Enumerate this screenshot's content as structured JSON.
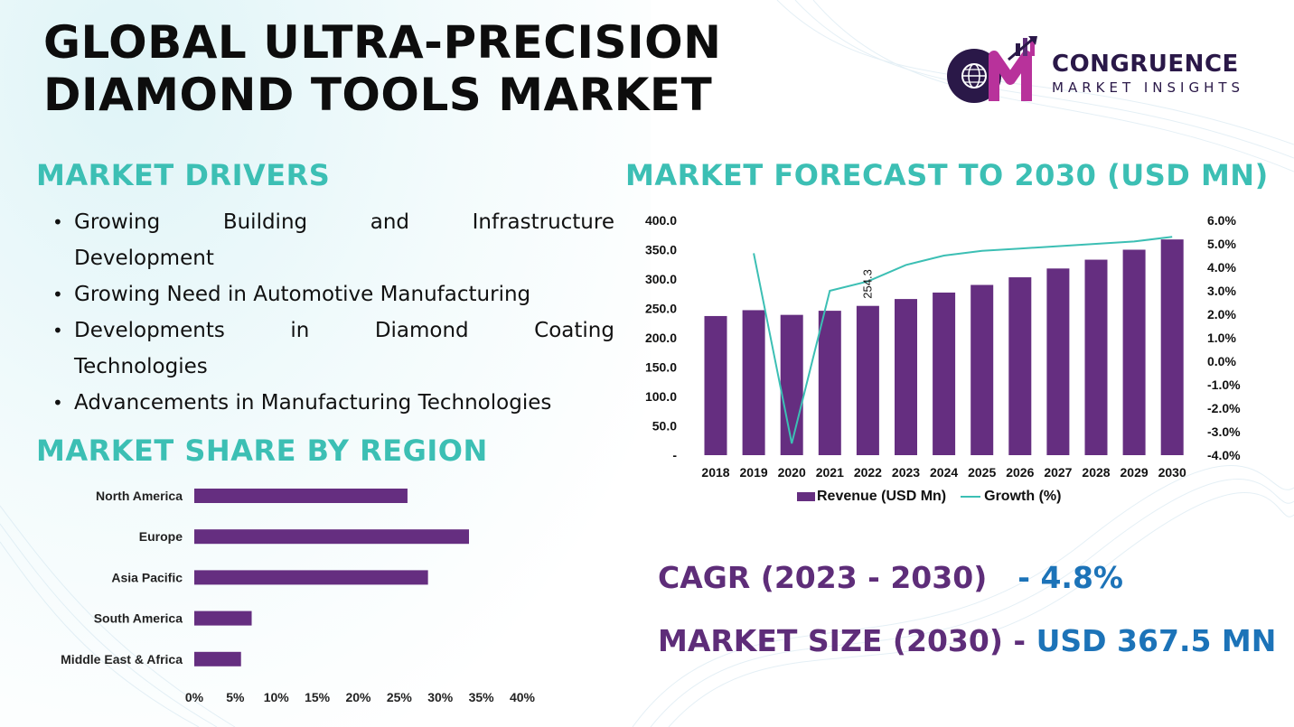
{
  "title": {
    "line1": "GLOBAL ULTRA-PRECISION",
    "line2": "DIAMOND TOOLS MARKET"
  },
  "logo": {
    "monogram": "CM",
    "name": "CONGRUENCE",
    "sub": "MARKET INSIGHTS",
    "colors": {
      "navy": "#2a1848",
      "magenta": "#b8329b",
      "purple": "#5e2d79"
    }
  },
  "drivers": {
    "heading": "MARKET DRIVERS",
    "items": [
      {
        "line1": "Growing Building and Infrastructure",
        "line2": "Development"
      },
      {
        "line1": "Growing Need in Automotive Manufacturing"
      },
      {
        "line1": "Developments in Diamond Coating",
        "line2": "Technologies"
      },
      {
        "line1": "Advancements in Manufacturing Technologies"
      }
    ]
  },
  "region": {
    "heading": "MARKET SHARE BY REGION"
  },
  "forecast": {
    "heading": "MARKET FORECAST TO 2030 (USD MN)",
    "legend": {
      "revenue": "Revenue (USD Mn)",
      "growth": "Growth (%)"
    }
  },
  "stats": {
    "cagr_label": "CAGR (2023 - 2030)",
    "cagr_value": "- 4.8%",
    "size_label": "MARKET SIZE (2030) -",
    "size_value": "USD 367.5 MN"
  },
  "colors": {
    "bar": "#652e80",
    "line": "#3cbfb4",
    "heading": "#3cbfb4",
    "stat_value": "#1c73b8"
  },
  "chart_data": [
    {
      "type": "bar",
      "orientation": "horizontal",
      "title": "MARKET SHARE BY REGION",
      "categories": [
        "North America",
        "Europe",
        "Asia Pacific",
        "South America",
        "Middle East & Africa"
      ],
      "values": [
        26,
        33.5,
        28.5,
        7,
        5.7
      ],
      "unit": "%",
      "xlim": [
        0,
        40
      ],
      "xticks": [
        "0%",
        "5%",
        "10%",
        "15%",
        "20%",
        "25%",
        "30%",
        "35%",
        "40%"
      ],
      "grid": false
    },
    {
      "type": "bar",
      "title": "MARKET FORECAST TO 2030 (USD MN)",
      "categories": [
        "2018",
        "2019",
        "2020",
        "2021",
        "2022",
        "2023",
        "2024",
        "2025",
        "2026",
        "2027",
        "2028",
        "2029",
        "2030"
      ],
      "series": [
        {
          "name": "Revenue (USD Mn)",
          "type": "bar",
          "axis": "left",
          "values": [
            237,
            247,
            239,
            246,
            254.3,
            266,
            277,
            290,
            303,
            318,
            333,
            350,
            367.5
          ]
        },
        {
          "name": "Growth (%)",
          "type": "line",
          "axis": "right",
          "values": [
            null,
            4.6,
            -3.5,
            3.0,
            3.4,
            4.1,
            4.5,
            4.7,
            4.8,
            4.9,
            5.0,
            5.1,
            5.3
          ]
        }
      ],
      "data_labels": [
        {
          "category": "2022",
          "text": "254.3"
        }
      ],
      "ylim_left": [
        0,
        400
      ],
      "yticks_left": [
        "-",
        "50.0",
        "100.0",
        "150.0",
        "200.0",
        "250.0",
        "300.0",
        "350.0",
        "400.0"
      ],
      "ylim_right": [
        -4,
        6
      ],
      "yticks_right": [
        "-4.0%",
        "-3.0%",
        "-2.0%",
        "-1.0%",
        "0.0%",
        "1.0%",
        "2.0%",
        "3.0%",
        "4.0%",
        "5.0%",
        "6.0%"
      ],
      "legend": "bottom",
      "grid": false
    }
  ]
}
